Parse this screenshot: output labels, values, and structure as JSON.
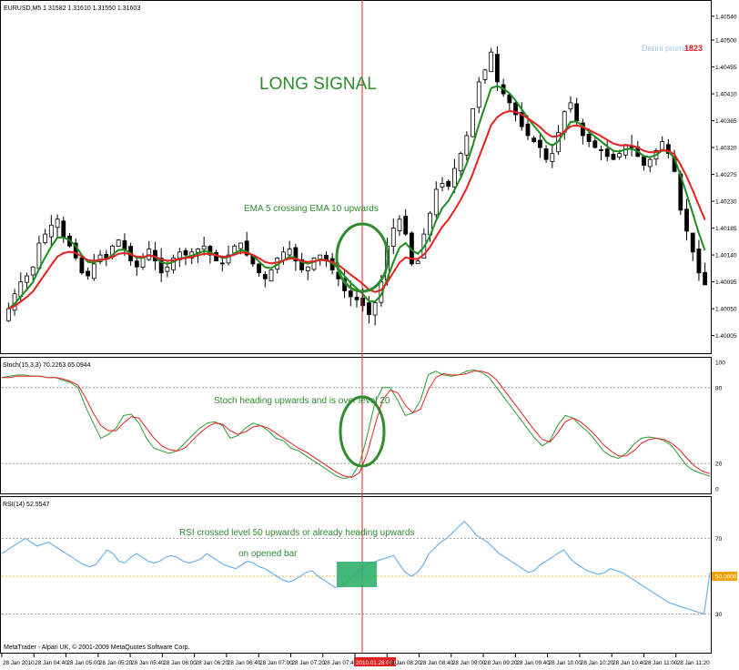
{
  "window": {
    "symbol_header": "EURUSD,M5  1.31582 1.31610 1.31550 1.31603",
    "watermark": "Denni prumer",
    "watermark_value": "1823",
    "copyright": "MetaTrader - Alpari UK, © 2001-2009 MetaQuotes Software Corp."
  },
  "annotations": {
    "signal_title": "LONG SIGNAL",
    "ema_note": "EMA 5 crossing EMA 10 upwards",
    "stoch_note": "Stoch heading upwards and is over level 20",
    "rsi_note_1": "RSI crossed level 50 upwards or already heading upwards",
    "rsi_note_2": "on opened bar"
  },
  "colors": {
    "bull_candle": "#ffffff",
    "bear_candle": "#000000",
    "ema_fast": "#1e8c1e",
    "ema_slow": "#e82020",
    "stoch_main": "#2e9b2e",
    "stoch_signal": "#e82020",
    "rsi_line": "#6cb4f0",
    "rsi_level50": "#f0a000",
    "crosshair": "#e02020",
    "annotation_green": "#2e8b2e",
    "signal_box": "#2fb06a"
  },
  "chart_data": [
    {
      "type": "candlestick",
      "name": "price",
      "y_axis_ticks": [
        "1.40540",
        "1.40500",
        "1.40455",
        "1.40410",
        "1.40365",
        "1.40320",
        "1.40275",
        "1.40230",
        "1.40185",
        "1.40140",
        "1.40095",
        "1.40050",
        "1.40005"
      ],
      "ylim": [
        1.3998,
        1.40555
      ],
      "x_ticks": [
        "28 Jan 2010",
        "28 Jan 04:40",
        "28 Jan 05:00",
        "28 Jan 05:20",
        "28 Jan 05:40",
        "28 Jan 06:00",
        "28 Jan 06:20",
        "28 Jan 06:40",
        "28 Jan 07:00",
        "28 Jan 07:20",
        "28 Jan 07:40",
        "2010.01.28 08:00",
        "28 Jan 08:20",
        "28 Jan 08:40",
        "28 Jan 09:00",
        "28 Jan 09:20",
        "28 Jan 09:40",
        "28 Jan 10:00",
        "28 Jan 10:20",
        "28 Jan 10:40",
        "28 Jan 11:00",
        "28 Jan 11:20"
      ],
      "highlighted_tick": "2010.01.28 08:00",
      "close": [
        1.4005,
        1.40075,
        1.40095,
        1.40105,
        1.4012,
        1.4016,
        1.40175,
        1.4019,
        1.402,
        1.4017,
        1.40155,
        1.40135,
        1.4011,
        1.40105,
        1.40125,
        1.4014,
        1.40135,
        1.40155,
        1.40165,
        1.4015,
        1.4013,
        1.4012,
        1.40135,
        1.4015,
        1.4013,
        1.4011,
        1.4012,
        1.40135,
        1.40145,
        1.4014,
        1.40145,
        1.4015,
        1.40155,
        1.4014,
        1.4013,
        1.40125,
        1.4014,
        1.40155,
        1.4016,
        1.4014,
        1.40125,
        1.4011,
        1.401,
        1.40115,
        1.40135,
        1.40145,
        1.4015,
        1.4013,
        1.40115,
        1.4012,
        1.40135,
        1.4014,
        1.4013,
        1.40115,
        1.401,
        1.4008,
        1.4007,
        1.40065,
        1.40055,
        1.4004,
        1.4006,
        1.40095,
        1.40155,
        1.40185,
        1.402,
        1.40175,
        1.40125,
        1.4013,
        1.40175,
        1.4021,
        1.4025,
        1.4026,
        1.40255,
        1.40285,
        1.4031,
        1.4034,
        1.40385,
        1.4043,
        1.4045,
        1.4048,
        1.4043,
        1.4041,
        1.40395,
        1.40375,
        1.40355,
        1.4034,
        1.4033,
        1.4032,
        1.403,
        1.4031,
        1.40345,
        1.4038,
        1.40395,
        1.40365,
        1.4034,
        1.4033,
        1.4032,
        1.40315,
        1.40305,
        1.403,
        1.4031,
        1.40325,
        1.4032,
        1.40305,
        1.4029,
        1.403,
        1.40315,
        1.4033,
        1.4031,
        1.4028,
        1.40215,
        1.4018,
        1.40145,
        1.4011,
        1.4009
      ],
      "series": [
        {
          "name": "EMA 5",
          "indicator": "ema",
          "period": 5
        },
        {
          "name": "EMA 10",
          "indicator": "ema",
          "period": 10
        }
      ],
      "signal_bar_index": 60
    },
    {
      "type": "line",
      "name": "Stoch(15,3,3)",
      "label": "Stoch(15,3,3) 70.2263 65.0944",
      "y_axis_ticks": [
        "100",
        "80",
        "20",
        "0"
      ],
      "levels": [
        80,
        20
      ],
      "ylim": [
        0,
        100
      ],
      "series": [
        {
          "name": "main",
          "values": [
            88,
            89,
            90,
            90,
            89,
            89,
            88,
            88,
            86,
            84,
            80,
            65,
            52,
            40,
            43,
            48,
            58,
            59,
            52,
            40,
            32,
            30,
            28,
            30,
            36,
            42,
            48,
            52,
            53,
            50,
            40,
            42,
            48,
            52,
            50,
            46,
            40,
            38,
            32,
            30,
            26,
            22,
            18,
            14,
            10,
            8,
            10,
            20,
            42,
            68,
            80,
            80,
            70,
            58,
            60,
            70,
            90,
            93,
            90,
            89,
            90,
            93,
            94,
            92,
            88,
            80,
            72,
            64,
            56,
            48,
            40,
            34,
            38,
            50,
            58,
            56,
            50,
            45,
            38,
            30,
            26,
            24,
            28,
            35,
            40,
            41,
            40,
            38,
            34,
            26,
            18,
            14,
            12,
            10
          ]
        },
        {
          "name": "signal",
          "values": [
            88,
            88,
            89,
            89,
            89,
            89,
            88,
            88,
            87,
            85,
            82,
            72,
            60,
            50,
            46,
            46,
            52,
            57,
            56,
            48,
            40,
            34,
            31,
            30,
            32,
            38,
            44,
            49,
            52,
            51,
            46,
            43,
            45,
            49,
            50,
            48,
            44,
            40,
            36,
            32,
            29,
            25,
            21,
            17,
            13,
            10,
            9,
            13,
            28,
            50,
            70,
            78,
            76,
            66,
            60,
            63,
            78,
            88,
            91,
            90,
            90,
            91,
            93,
            93,
            91,
            86,
            78,
            70,
            62,
            54,
            46,
            39,
            37,
            44,
            53,
            56,
            53,
            48,
            42,
            35,
            30,
            26,
            26,
            30,
            36,
            39,
            40,
            39,
            36,
            31,
            24,
            18,
            14,
            12
          ]
        }
      ]
    },
    {
      "type": "line",
      "name": "RSI(14)",
      "label": "RSI(14) 52.5547",
      "y_axis_ticks": [
        "70",
        "50.0000",
        "30"
      ],
      "levels": [
        70,
        50,
        30
      ],
      "ylim": [
        10,
        90
      ],
      "series": [
        {
          "name": "RSI",
          "values": [
            62,
            64,
            66,
            68,
            70,
            68,
            66,
            67,
            68,
            66,
            64,
            62,
            60,
            58,
            56,
            55,
            56,
            60,
            64,
            62,
            58,
            57,
            60,
            62,
            60,
            58,
            57,
            58,
            60,
            61,
            60,
            58,
            57,
            58,
            59,
            62,
            60,
            58,
            56,
            55,
            54,
            56,
            58,
            57,
            55,
            54,
            52,
            50,
            48,
            47,
            48,
            50,
            52,
            53,
            50,
            48,
            46,
            44,
            45,
            47,
            50,
            53,
            55,
            57,
            58,
            59,
            60,
            61,
            56,
            52,
            50,
            52,
            56,
            62,
            65,
            68,
            70,
            73,
            76,
            79,
            76,
            72,
            70,
            68,
            65,
            62,
            60,
            58,
            56,
            54,
            52,
            53,
            56,
            58,
            60,
            62,
            64,
            60,
            57,
            55,
            53,
            52,
            51,
            52,
            54,
            53,
            52,
            50,
            48,
            46,
            44,
            42,
            40,
            38,
            36,
            35,
            34,
            33,
            32,
            31,
            30,
            52
          ]
        }
      ]
    }
  ]
}
